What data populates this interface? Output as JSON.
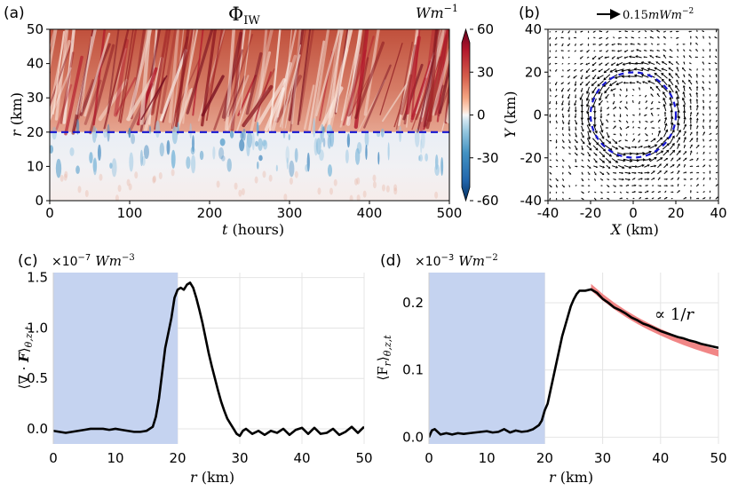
{
  "chart_data": [
    {
      "id": "a",
      "type": "heatmap",
      "panel_label": "(a)",
      "title": "Φ_IW",
      "title_main": "Φ",
      "title_sub": "IW",
      "units_main": "Wm",
      "units_exp": "−1",
      "xlabel_var": "t",
      "xlabel_unit": " (hours)",
      "ylabel_var": "r",
      "ylabel_unit": " (km)",
      "xlim": [
        0,
        500
      ],
      "ylim": [
        0,
        50
      ],
      "x_ticks": [
        "0",
        "100",
        "200",
        "300",
        "400",
        "500"
      ],
      "y_ticks": [
        "0",
        "10",
        "20",
        "30",
        "40",
        "50"
      ],
      "colorbar_ticks": [
        "60",
        "30",
        "0",
        "-30",
        "-60"
      ],
      "colorbar_range": [
        -60,
        60
      ],
      "reference_line_r": 20,
      "reference_line_color": "#1515d0"
    },
    {
      "id": "b",
      "type": "scatter",
      "panel_label": "(b)",
      "description_kind": "vector field",
      "scale_label_main": "0.15",
      "scale_label_unit": "mWm",
      "scale_label_exp": "−2",
      "xlabel_var": "X",
      "xlabel_unit": " (km)",
      "ylabel_var": "Y",
      "ylabel_unit": " (km)",
      "xlim": [
        -40,
        40
      ],
      "ylim": [
        -40,
        40
      ],
      "x_ticks": [
        "-40",
        "-20",
        "0",
        "20",
        "40"
      ],
      "y_ticks": [
        "-40",
        "-20",
        "0",
        "20",
        "40"
      ],
      "circle_radius_km": 20,
      "circle_color": "#1515d0"
    },
    {
      "id": "c",
      "type": "line",
      "panel_label": "(c)",
      "scale_prefix": "×10",
      "scale_exp": "−7",
      "units_main": "Wm",
      "units_exp": "−3",
      "ylabel": "⟨∇ · F⟩θ,z,t",
      "ylabel_parts": [
        "⟨∇ · ",
        "F",
        "⟩",
        "θ,z,t"
      ],
      "xlabel_var": "r",
      "xlabel_unit": " (km)",
      "xlim": [
        0,
        50
      ],
      "ylim": [
        -0.15,
        1.55
      ],
      "x_ticks": [
        "0",
        "10",
        "20",
        "30",
        "40",
        "50"
      ],
      "y_ticks": [
        "0.0",
        "0.5",
        "1.0",
        "1.5"
      ],
      "shaded_region": [
        0,
        20
      ],
      "shade_color": "#c5d3f0",
      "series": [
        {
          "name": "divergence",
          "x": [
            0,
            1,
            2,
            3,
            4,
            5,
            6,
            7,
            8,
            9,
            10,
            11,
            12,
            13,
            14,
            15,
            16,
            16.5,
            17,
            17.5,
            18,
            18.5,
            19,
            19.5,
            20,
            20.5,
            21,
            21.5,
            22,
            22.5,
            23,
            23.5,
            24,
            24.5,
            25,
            25.5,
            26,
            26.5,
            27,
            27.5,
            28,
            28.5,
            29,
            29.5,
            30,
            30.5,
            31,
            32,
            33,
            34,
            35,
            36,
            37,
            38,
            39,
            40,
            41,
            42,
            43,
            44,
            45,
            46,
            47,
            48,
            49,
            50
          ],
          "values": [
            -0.02,
            -0.03,
            -0.04,
            -0.03,
            -0.02,
            -0.01,
            0.0,
            0.0,
            0.0,
            -0.01,
            0.0,
            -0.01,
            -0.02,
            -0.03,
            -0.03,
            -0.02,
            0.02,
            0.12,
            0.3,
            0.55,
            0.8,
            0.95,
            1.1,
            1.3,
            1.38,
            1.4,
            1.38,
            1.43,
            1.45,
            1.4,
            1.3,
            1.18,
            1.05,
            0.9,
            0.75,
            0.62,
            0.5,
            0.38,
            0.27,
            0.18,
            0.1,
            0.05,
            0.0,
            -0.05,
            -0.07,
            -0.02,
            0.0,
            -0.05,
            -0.02,
            -0.06,
            -0.02,
            -0.04,
            0.0,
            -0.06,
            -0.01,
            0.01,
            -0.05,
            0.01,
            -0.05,
            -0.04,
            0.0,
            -0.06,
            -0.03,
            0.02,
            -0.04,
            0.02
          ]
        }
      ]
    },
    {
      "id": "d",
      "type": "line",
      "panel_label": "(d)",
      "scale_prefix": "×10",
      "scale_exp": "−3",
      "units_main": "Wm",
      "units_exp": "−2",
      "ylabel": "⟨Fr⟩θ,z,t",
      "ylabel_parts": [
        "⟨F",
        "r",
        "⟩",
        "θ,z,t"
      ],
      "xlabel_var": "r",
      "xlabel_unit": " (km)",
      "xlim": [
        0,
        50
      ],
      "ylim": [
        -0.01,
        0.245
      ],
      "x_ticks": [
        "0",
        "10",
        "20",
        "30",
        "40",
        "50"
      ],
      "y_ticks": [
        "0.0",
        "0.1",
        "0.2"
      ],
      "shaded_region": [
        0,
        20
      ],
      "shade_color": "#c5d3f0",
      "annotation": "∝ 1/r",
      "annotation_parts": [
        "∝ 1/",
        "r"
      ],
      "fit_color": "#f08080",
      "fit_band_halfwidth": 0.005,
      "series": [
        {
          "name": "radial flux",
          "x": [
            0,
            0.5,
            1,
            2,
            3,
            4,
            5,
            6,
            7,
            8,
            9,
            10,
            11,
            12,
            13,
            14,
            15,
            16,
            17,
            18,
            19,
            19.5,
            20,
            20.5,
            21,
            21.5,
            22,
            22.5,
            23,
            23.5,
            24,
            24.5,
            25,
            25.5,
            26,
            27,
            28,
            29,
            30,
            31,
            32,
            33,
            34,
            35,
            36,
            37,
            38,
            39,
            40,
            41,
            42,
            43,
            44,
            45,
            46,
            47,
            48,
            49,
            50
          ],
          "values": [
            0.0,
            0.01,
            0.012,
            0.004,
            0.006,
            0.004,
            0.006,
            0.005,
            0.006,
            0.007,
            0.008,
            0.009,
            0.007,
            0.008,
            0.012,
            0.007,
            0.01,
            0.008,
            0.009,
            0.012,
            0.018,
            0.025,
            0.04,
            0.05,
            0.07,
            0.09,
            0.11,
            0.13,
            0.15,
            0.165,
            0.18,
            0.195,
            0.205,
            0.213,
            0.218,
            0.218,
            0.22,
            0.215,
            0.206,
            0.2,
            0.193,
            0.189,
            0.184,
            0.178,
            0.174,
            0.169,
            0.166,
            0.162,
            0.158,
            0.155,
            0.152,
            0.149,
            0.147,
            0.144,
            0.142,
            0.139,
            0.137,
            0.135,
            0.133
          ]
        },
        {
          "name": "1/r fit",
          "x": [
            28,
            30,
            32,
            34,
            36,
            38,
            40,
            42,
            44,
            46,
            48,
            50
          ],
          "values": [
            0.2232,
            0.2083,
            0.1953,
            0.1838,
            0.1736,
            0.1645,
            0.1563,
            0.1488,
            0.142,
            0.1359,
            0.1302,
            0.125
          ]
        }
      ]
    }
  ]
}
